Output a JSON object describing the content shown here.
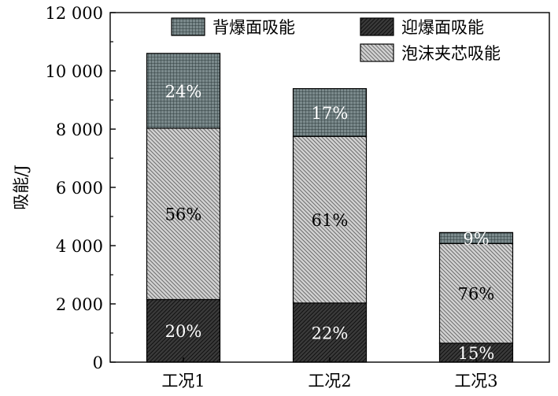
{
  "chart_data": {
    "type": "bar",
    "stacked": true,
    "categories": [
      "工况1",
      "工况2",
      "工况3"
    ],
    "series": [
      {
        "name": "迎爆面吸能",
        "values": [
          2150,
          2030,
          650
        ],
        "labels": [
          "20%",
          "22%",
          "15%"
        ],
        "pattern": "dark-diagonal",
        "color": "#2f2f2f",
        "label_color": "#ffffff"
      },
      {
        "name": "泡沫夹芯吸能",
        "values": [
          5880,
          5720,
          3420
        ],
        "labels": [
          "56%",
          "61%",
          "76%"
        ],
        "pattern": "light-diagonal",
        "color": "#c7c7c7",
        "label_color": "#000000"
      },
      {
        "name": "背爆面吸能",
        "values": [
          2570,
          1640,
          380
        ],
        "labels": [
          "24%",
          "17%",
          "9%"
        ],
        "pattern": "grid",
        "color": "#7b8a8c",
        "label_color": "#ffffff"
      }
    ],
    "ylabel": "吸能/J",
    "xlabel": "",
    "ylim": [
      0,
      12000
    ],
    "yticks": [
      0,
      2000,
      4000,
      6000,
      8000,
      10000,
      12000
    ],
    "ytick_labels": [
      "0",
      "2 000",
      "4 000",
      "6 000",
      "8 000",
      "10 000",
      "12 000"
    ],
    "legend": [
      {
        "name": "背爆面吸能",
        "pattern": "grid"
      },
      {
        "name": "迎爆面吸能",
        "pattern": "dark-diagonal"
      },
      {
        "name": "泡沫夹芯吸能",
        "pattern": "light-diagonal"
      }
    ],
    "legend_position": "top-right",
    "grid": false
  }
}
